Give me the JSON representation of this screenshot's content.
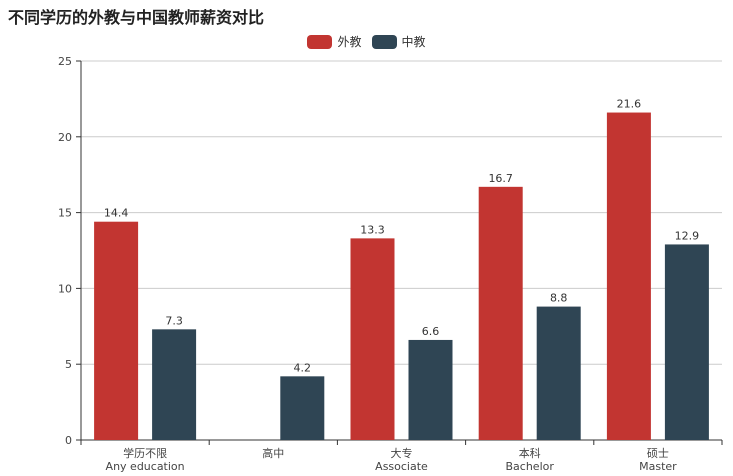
{
  "chart_data": {
    "type": "bar",
    "title": "不同学历的外教与中国教师薪资对比",
    "categories": [
      [
        "学历不限",
        "Any education"
      ],
      [
        "高中"
      ],
      [
        "大专",
        "Associate"
      ],
      [
        "本科",
        "Bachelor"
      ],
      [
        "硕士",
        "Master"
      ]
    ],
    "series": [
      {
        "name": "外教",
        "color": "#c23531",
        "values": [
          14.4,
          null,
          13.3,
          16.7,
          21.6
        ]
      },
      {
        "name": "中教",
        "color": "#2f4554",
        "values": [
          7.3,
          4.2,
          6.6,
          8.8,
          12.9
        ]
      }
    ],
    "ylim": [
      0,
      25
    ],
    "yticks": [
      0,
      5,
      10,
      15,
      20,
      25
    ],
    "grid": true,
    "legend_position": "top-center",
    "data_labels": true
  }
}
